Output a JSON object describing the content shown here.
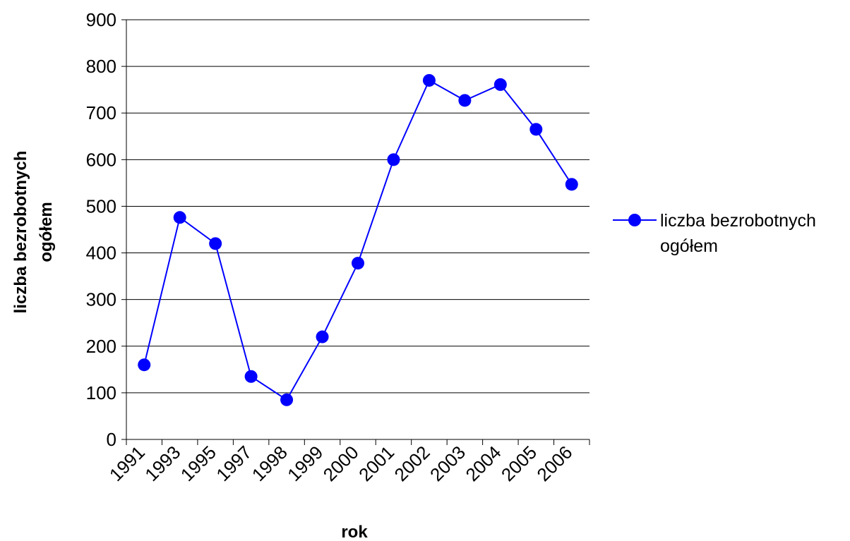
{
  "chart_data": {
    "type": "line",
    "categories": [
      "1991",
      "1993",
      "1995",
      "1997",
      "1998",
      "1999",
      "2000",
      "2001",
      "2002",
      "2003",
      "2004",
      "2005",
      "2006"
    ],
    "series": [
      {
        "name": "liczba bezrobotnych ogółem",
        "values": [
          160,
          476,
          420,
          135,
          85,
          220,
          378,
          600,
          770,
          727,
          761,
          665,
          547
        ]
      }
    ],
    "title": "",
    "xlabel": "rok",
    "ylabel": "liczba bezrobotnych ogółem",
    "ylim": [
      0,
      900
    ],
    "yticks": [
      0,
      100,
      200,
      300,
      400,
      500,
      600,
      700,
      800,
      900
    ],
    "grid": "horizontal",
    "legend_position": "right",
    "colors": {
      "series": "#0000ff",
      "grid": "#000000",
      "background": "#ffffff"
    }
  },
  "labels": {
    "xlabel": "rok",
    "ylabel_line1": "liczba bezrobotnych",
    "ylabel_line2": "ogółem",
    "legend_line1": "liczba bezrobotnych",
    "legend_line2": "ogółem"
  }
}
